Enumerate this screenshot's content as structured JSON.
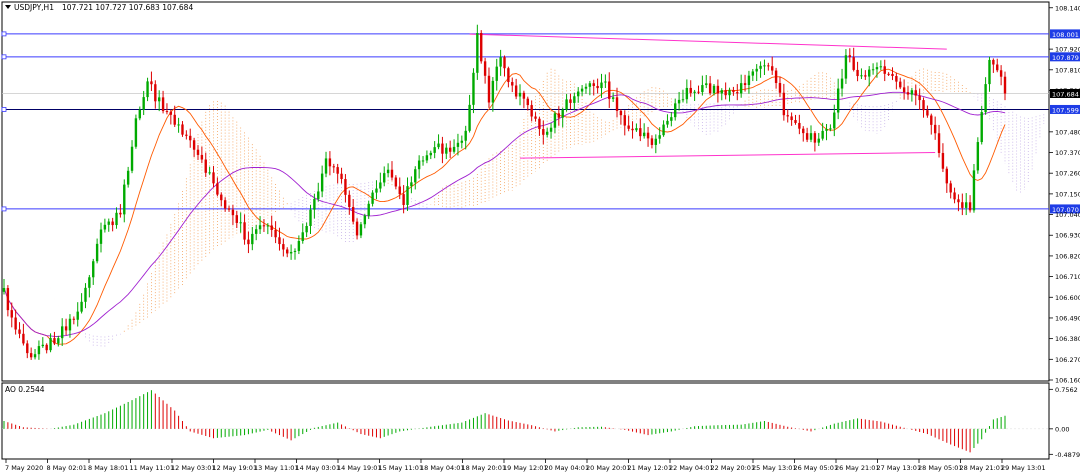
{
  "header": {
    "symbol_title": "USDJPY,H1",
    "ohlc_text": "107.721 107.727 107.683 107.684",
    "dropdown_icon": "triangle-down-icon"
  },
  "indicator": {
    "title": "AO 0.2544"
  },
  "colors": {
    "bull": "#00aa00",
    "bear": "#dd0000",
    "hline": "#3a3aff",
    "trend": "#ff33cc",
    "ma_fast": "#ff5a00",
    "ma_slow": "#a020d0",
    "cloud_up": "#f4a460",
    "cloud_down": "#c8b4e8",
    "current_line": "#c8c8c8",
    "grid_text": "#000000",
    "label_bg_blue": "#1e3ce6"
  },
  "chart_data": [
    {
      "type": "candlestick",
      "title": "USDJPY,H1",
      "ylim": [
        106.16,
        108.16
      ],
      "y_ticks": [
        "108.140",
        "107.920",
        "107.810",
        "107.700",
        "107.480",
        "107.370",
        "107.260",
        "107.150",
        "107.040",
        "106.930",
        "106.820",
        "106.710",
        "106.600",
        "106.490",
        "106.380",
        "106.270",
        "106.160"
      ],
      "x_ticks": [
        "7 May 2020",
        "8 May 02:01",
        "8 May 18:01",
        "11 May 11:01",
        "12 May 03:01",
        "12 May 19:01",
        "13 May 11:01",
        "14 May 03:01",
        "14 May 19:01",
        "15 May 11:01",
        "18 May 04:01",
        "18 May 20:01",
        "19 May 12:01",
        "20 May 04:01",
        "20 May 20:01",
        "21 May 12:01",
        "22 May 04:01",
        "22 May 20:01",
        "25 May 13:01",
        "26 May 05:01",
        "26 May 21:01",
        "27 May 13:01",
        "28 May 05:01",
        "28 May 21:01",
        "29 May 13:01"
      ],
      "horizontal_levels": [
        "108.001",
        "107.879",
        "107.599",
        "107.070"
      ],
      "current_price": "107.684",
      "anchors": [
        {
          "t": 0,
          "v": 106.62
        },
        {
          "t": 3,
          "v": 106.42
        },
        {
          "t": 6,
          "v": 106.3
        },
        {
          "t": 10,
          "v": 106.33
        },
        {
          "t": 15,
          "v": 106.42
        },
        {
          "t": 20,
          "v": 106.55
        },
        {
          "t": 25,
          "v": 106.95
        },
        {
          "t": 30,
          "v": 107.05
        },
        {
          "t": 34,
          "v": 107.55
        },
        {
          "t": 37,
          "v": 107.74
        },
        {
          "t": 41,
          "v": 107.6
        },
        {
          "t": 44,
          "v": 107.52
        },
        {
          "t": 48,
          "v": 107.42
        },
        {
          "t": 52,
          "v": 107.28
        },
        {
          "t": 56,
          "v": 107.12
        },
        {
          "t": 60,
          "v": 107.02
        },
        {
          "t": 63,
          "v": 106.88
        },
        {
          "t": 67,
          "v": 107.0
        },
        {
          "t": 71,
          "v": 106.88
        },
        {
          "t": 75,
          "v": 106.82
        },
        {
          "t": 79,
          "v": 107.05
        },
        {
          "t": 83,
          "v": 107.32
        },
        {
          "t": 87,
          "v": 107.22
        },
        {
          "t": 91,
          "v": 106.95
        },
        {
          "t": 95,
          "v": 107.15
        },
        {
          "t": 99,
          "v": 107.3
        },
        {
          "t": 103,
          "v": 107.12
        },
        {
          "t": 107,
          "v": 107.3
        },
        {
          "t": 111,
          "v": 107.4
        },
        {
          "t": 115,
          "v": 107.36
        },
        {
          "t": 119,
          "v": 107.48
        },
        {
          "t": 122,
          "v": 107.98
        },
        {
          "t": 125,
          "v": 107.66
        },
        {
          "t": 128,
          "v": 107.88
        },
        {
          "t": 131,
          "v": 107.72
        },
        {
          "t": 135,
          "v": 107.62
        },
        {
          "t": 139,
          "v": 107.48
        },
        {
          "t": 143,
          "v": 107.58
        },
        {
          "t": 147,
          "v": 107.68
        },
        {
          "t": 151,
          "v": 107.74
        },
        {
          "t": 155,
          "v": 107.72
        },
        {
          "t": 159,
          "v": 107.55
        },
        {
          "t": 163,
          "v": 107.5
        },
        {
          "t": 167,
          "v": 107.42
        },
        {
          "t": 171,
          "v": 107.55
        },
        {
          "t": 175,
          "v": 107.68
        },
        {
          "t": 179,
          "v": 107.7
        },
        {
          "t": 183,
          "v": 107.72
        },
        {
          "t": 187,
          "v": 107.68
        },
        {
          "t": 191,
          "v": 107.72
        },
        {
          "t": 195,
          "v": 107.85
        },
        {
          "t": 198,
          "v": 107.82
        },
        {
          "t": 201,
          "v": 107.58
        },
        {
          "t": 205,
          "v": 107.48
        },
        {
          "t": 209,
          "v": 107.45
        },
        {
          "t": 213,
          "v": 107.52
        },
        {
          "t": 217,
          "v": 107.88
        },
        {
          "t": 221,
          "v": 107.78
        },
        {
          "t": 225,
          "v": 107.84
        },
        {
          "t": 229,
          "v": 107.78
        },
        {
          "t": 233,
          "v": 107.7
        },
        {
          "t": 237,
          "v": 107.62
        },
        {
          "t": 240,
          "v": 107.48
        },
        {
          "t": 243,
          "v": 107.2
        },
        {
          "t": 246,
          "v": 107.1
        },
        {
          "t": 249,
          "v": 107.08
        },
        {
          "t": 252,
          "v": 107.6
        },
        {
          "t": 254,
          "v": 107.86
        },
        {
          "t": 256,
          "v": 107.82
        },
        {
          "t": 258,
          "v": 107.684
        }
      ],
      "trendlines": [
        {
          "t1": 120,
          "v1": 108.0,
          "t2": 243,
          "v2": 107.92
        },
        {
          "t1": 133,
          "v1": 107.34,
          "t2": 240,
          "v2": 107.37
        }
      ],
      "n_candles": 259
    },
    {
      "type": "bar",
      "title": "AO 0.2544",
      "ylim": [
        -0.52,
        0.82
      ],
      "y_ticks": [
        "0.7562",
        "0.00",
        "-0.4879"
      ],
      "anchors": [
        {
          "t": 0,
          "v": 0.15
        },
        {
          "t": 5,
          "v": 0.03
        },
        {
          "t": 12,
          "v": 0.0
        },
        {
          "t": 18,
          "v": 0.08
        },
        {
          "t": 26,
          "v": 0.3
        },
        {
          "t": 33,
          "v": 0.55
        },
        {
          "t": 38,
          "v": 0.74
        },
        {
          "t": 44,
          "v": 0.35
        },
        {
          "t": 48,
          "v": -0.05
        },
        {
          "t": 54,
          "v": -0.18
        },
        {
          "t": 62,
          "v": -0.12
        },
        {
          "t": 68,
          "v": -0.02
        },
        {
          "t": 74,
          "v": -0.22
        },
        {
          "t": 80,
          "v": 0.02
        },
        {
          "t": 86,
          "v": 0.12
        },
        {
          "t": 92,
          "v": -0.1
        },
        {
          "t": 97,
          "v": -0.18
        },
        {
          "t": 102,
          "v": -0.05
        },
        {
          "t": 110,
          "v": 0.04
        },
        {
          "t": 118,
          "v": 0.12
        },
        {
          "t": 124,
          "v": 0.3
        },
        {
          "t": 130,
          "v": 0.16
        },
        {
          "t": 136,
          "v": 0.07
        },
        {
          "t": 142,
          "v": -0.05
        },
        {
          "t": 148,
          "v": 0.03
        },
        {
          "t": 154,
          "v": 0.04
        },
        {
          "t": 160,
          "v": -0.02
        },
        {
          "t": 166,
          "v": -0.12
        },
        {
          "t": 172,
          "v": -0.05
        },
        {
          "t": 178,
          "v": 0.05
        },
        {
          "t": 184,
          "v": 0.07
        },
        {
          "t": 190,
          "v": 0.08
        },
        {
          "t": 196,
          "v": 0.15
        },
        {
          "t": 202,
          "v": 0.04
        },
        {
          "t": 208,
          "v": -0.05
        },
        {
          "t": 214,
          "v": 0.1
        },
        {
          "t": 220,
          "v": 0.2
        },
        {
          "t": 226,
          "v": 0.14
        },
        {
          "t": 232,
          "v": 0.02
        },
        {
          "t": 238,
          "v": -0.1
        },
        {
          "t": 244,
          "v": -0.3
        },
        {
          "t": 249,
          "v": -0.45
        },
        {
          "t": 252,
          "v": -0.2
        },
        {
          "t": 255,
          "v": 0.18
        },
        {
          "t": 258,
          "v": 0.25
        }
      ],
      "n_bars": 259
    }
  ]
}
